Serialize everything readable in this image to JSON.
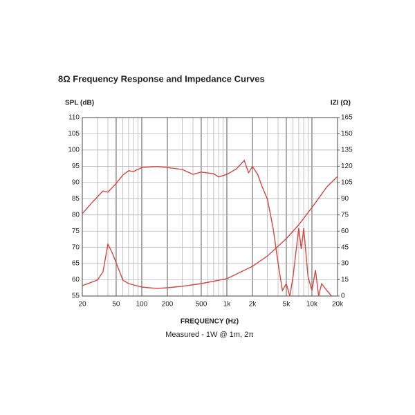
{
  "chart_data": {
    "type": "line",
    "title": "8Ω Frequency Response and Impedance Curves",
    "y_label": "SPL (dB)",
    "y2_label": "IZI (Ω)",
    "x_label": "FREQUENCY (Hz)",
    "subtitle": "Measured - 1W @ 1m, 2π",
    "xscale": "log",
    "grid": true,
    "xlim": [
      20,
      20000
    ],
    "xticks": [
      20,
      50,
      100,
      200,
      500,
      {
        "value": 1000,
        "label": "1k"
      },
      {
        "value": 2000,
        "label": "2k"
      },
      {
        "value": 5000,
        "label": "5k"
      },
      {
        "value": 10000,
        "label": "10k"
      },
      {
        "value": 20000,
        "label": "20k"
      }
    ],
    "xgrid": [
      30,
      40,
      60,
      70,
      80,
      90,
      300,
      400,
      600,
      700,
      800,
      900,
      3000,
      4000,
      6000,
      7000,
      8000,
      9000
    ],
    "ylim": [
      55,
      110
    ],
    "yticks": [
      55,
      60,
      65,
      70,
      75,
      80,
      85,
      90,
      95,
      100,
      105,
      110
    ],
    "y2lim": [
      0,
      165
    ],
    "y2ticks": [
      0,
      15,
      30,
      45,
      60,
      75,
      90,
      105,
      120,
      135,
      150,
      165
    ],
    "series": [
      {
        "name": "SPL",
        "color": "#d9443f",
        "x": [
          20,
          25,
          30,
          35,
          40,
          50,
          60,
          70,
          80,
          100,
          150,
          200,
          300,
          400,
          500,
          700,
          800,
          1000,
          1300,
          1600,
          1800,
          2000,
          2300,
          2600,
          3000,
          3500,
          4000,
          4500,
          5000,
          5500,
          6000,
          7000,
          7500,
          8000,
          9000,
          10000,
          11000,
          12000,
          13000,
          15000,
          17000
        ],
        "values": [
          80.4,
          83.3,
          85.5,
          87.4,
          87,
          89.7,
          92.3,
          93.6,
          93.4,
          94.6,
          94.9,
          94.6,
          94,
          92.5,
          93.2,
          92.7,
          91.7,
          92.5,
          94.2,
          96.8,
          93,
          94.9,
          92.5,
          88.7,
          84.8,
          75.9,
          65.2,
          56.7,
          58.8,
          55,
          61,
          75.9,
          69.5,
          75.9,
          61,
          56.7,
          63,
          55,
          58.8,
          56.7,
          55
        ]
      },
      {
        "name": "Impedance",
        "color": "#d9443f",
        "axis": "y2",
        "x": [
          20,
          30,
          35,
          40,
          45,
          50,
          60,
          70,
          100,
          150,
          200,
          300,
          500,
          1000,
          2000,
          3000,
          5000,
          7000,
          10000,
          15000,
          20000
        ],
        "values": [
          9.6,
          14.7,
          22.4,
          48,
          40,
          30.7,
          14.7,
          11.5,
          8.3,
          7,
          7.7,
          9,
          11.5,
          16,
          27.5,
          37,
          53,
          65.9,
          81.8,
          101,
          110.6
        ]
      }
    ]
  }
}
